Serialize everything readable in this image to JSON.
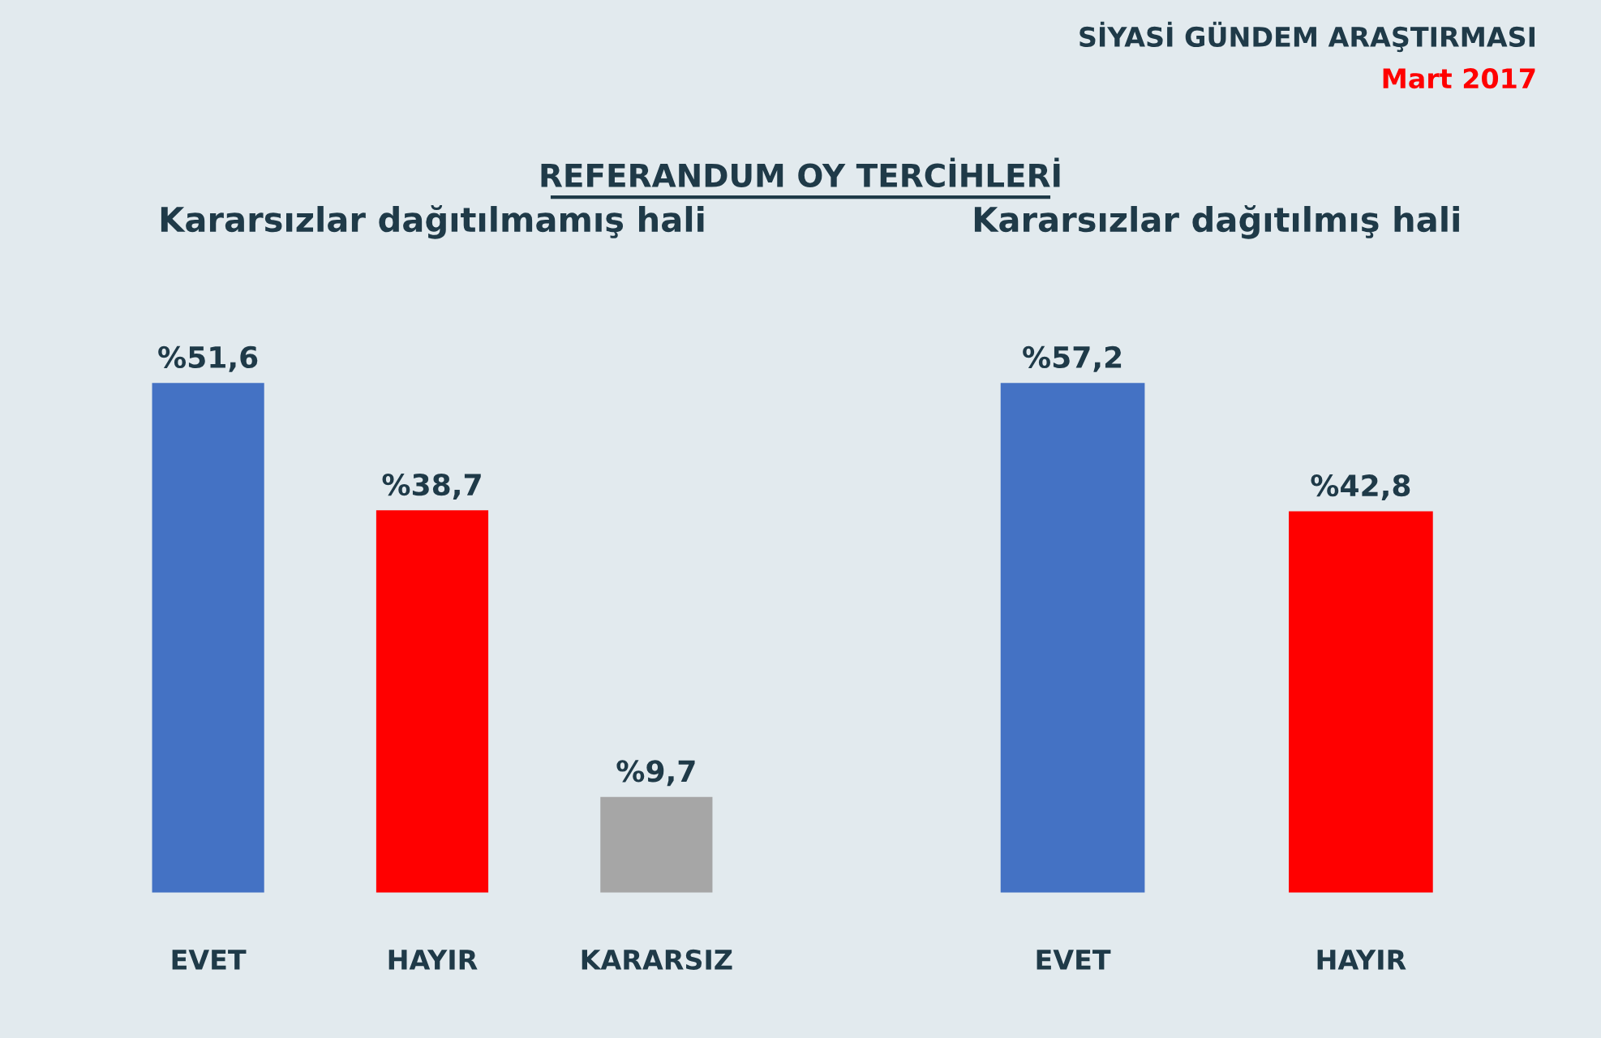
{
  "chart_data": [
    {
      "type": "bar",
      "title": "Kararsızlar dağıtılmamış hali",
      "annotations": [
        "SİYASİ GÜNDEM ARAŞTIRMASI",
        "Mart 2017",
        "REFERANDUM OY TERCİHLERİ"
      ],
      "categories": [
        "EVET",
        "HAYIR",
        "KARARSIZ"
      ],
      "values": [
        51.6,
        38.7,
        9.7
      ],
      "colors": [
        "#4472c4",
        "#ff0000",
        "#a6a6a6"
      ],
      "value_labels": [
        "%51,6",
        "%38,7",
        "%9,7"
      ],
      "grid": false,
      "legend": false
    },
    {
      "type": "bar",
      "title": "Kararsızlar dağıtılmış hali",
      "categories": [
        "EVET",
        "HAYIR"
      ],
      "values": [
        57.2,
        42.8
      ],
      "colors": [
        "#4472c4",
        "#ff0000"
      ],
      "value_labels": [
        "%57,2",
        "%42,8"
      ],
      "grid": false,
      "legend": false
    }
  ]
}
